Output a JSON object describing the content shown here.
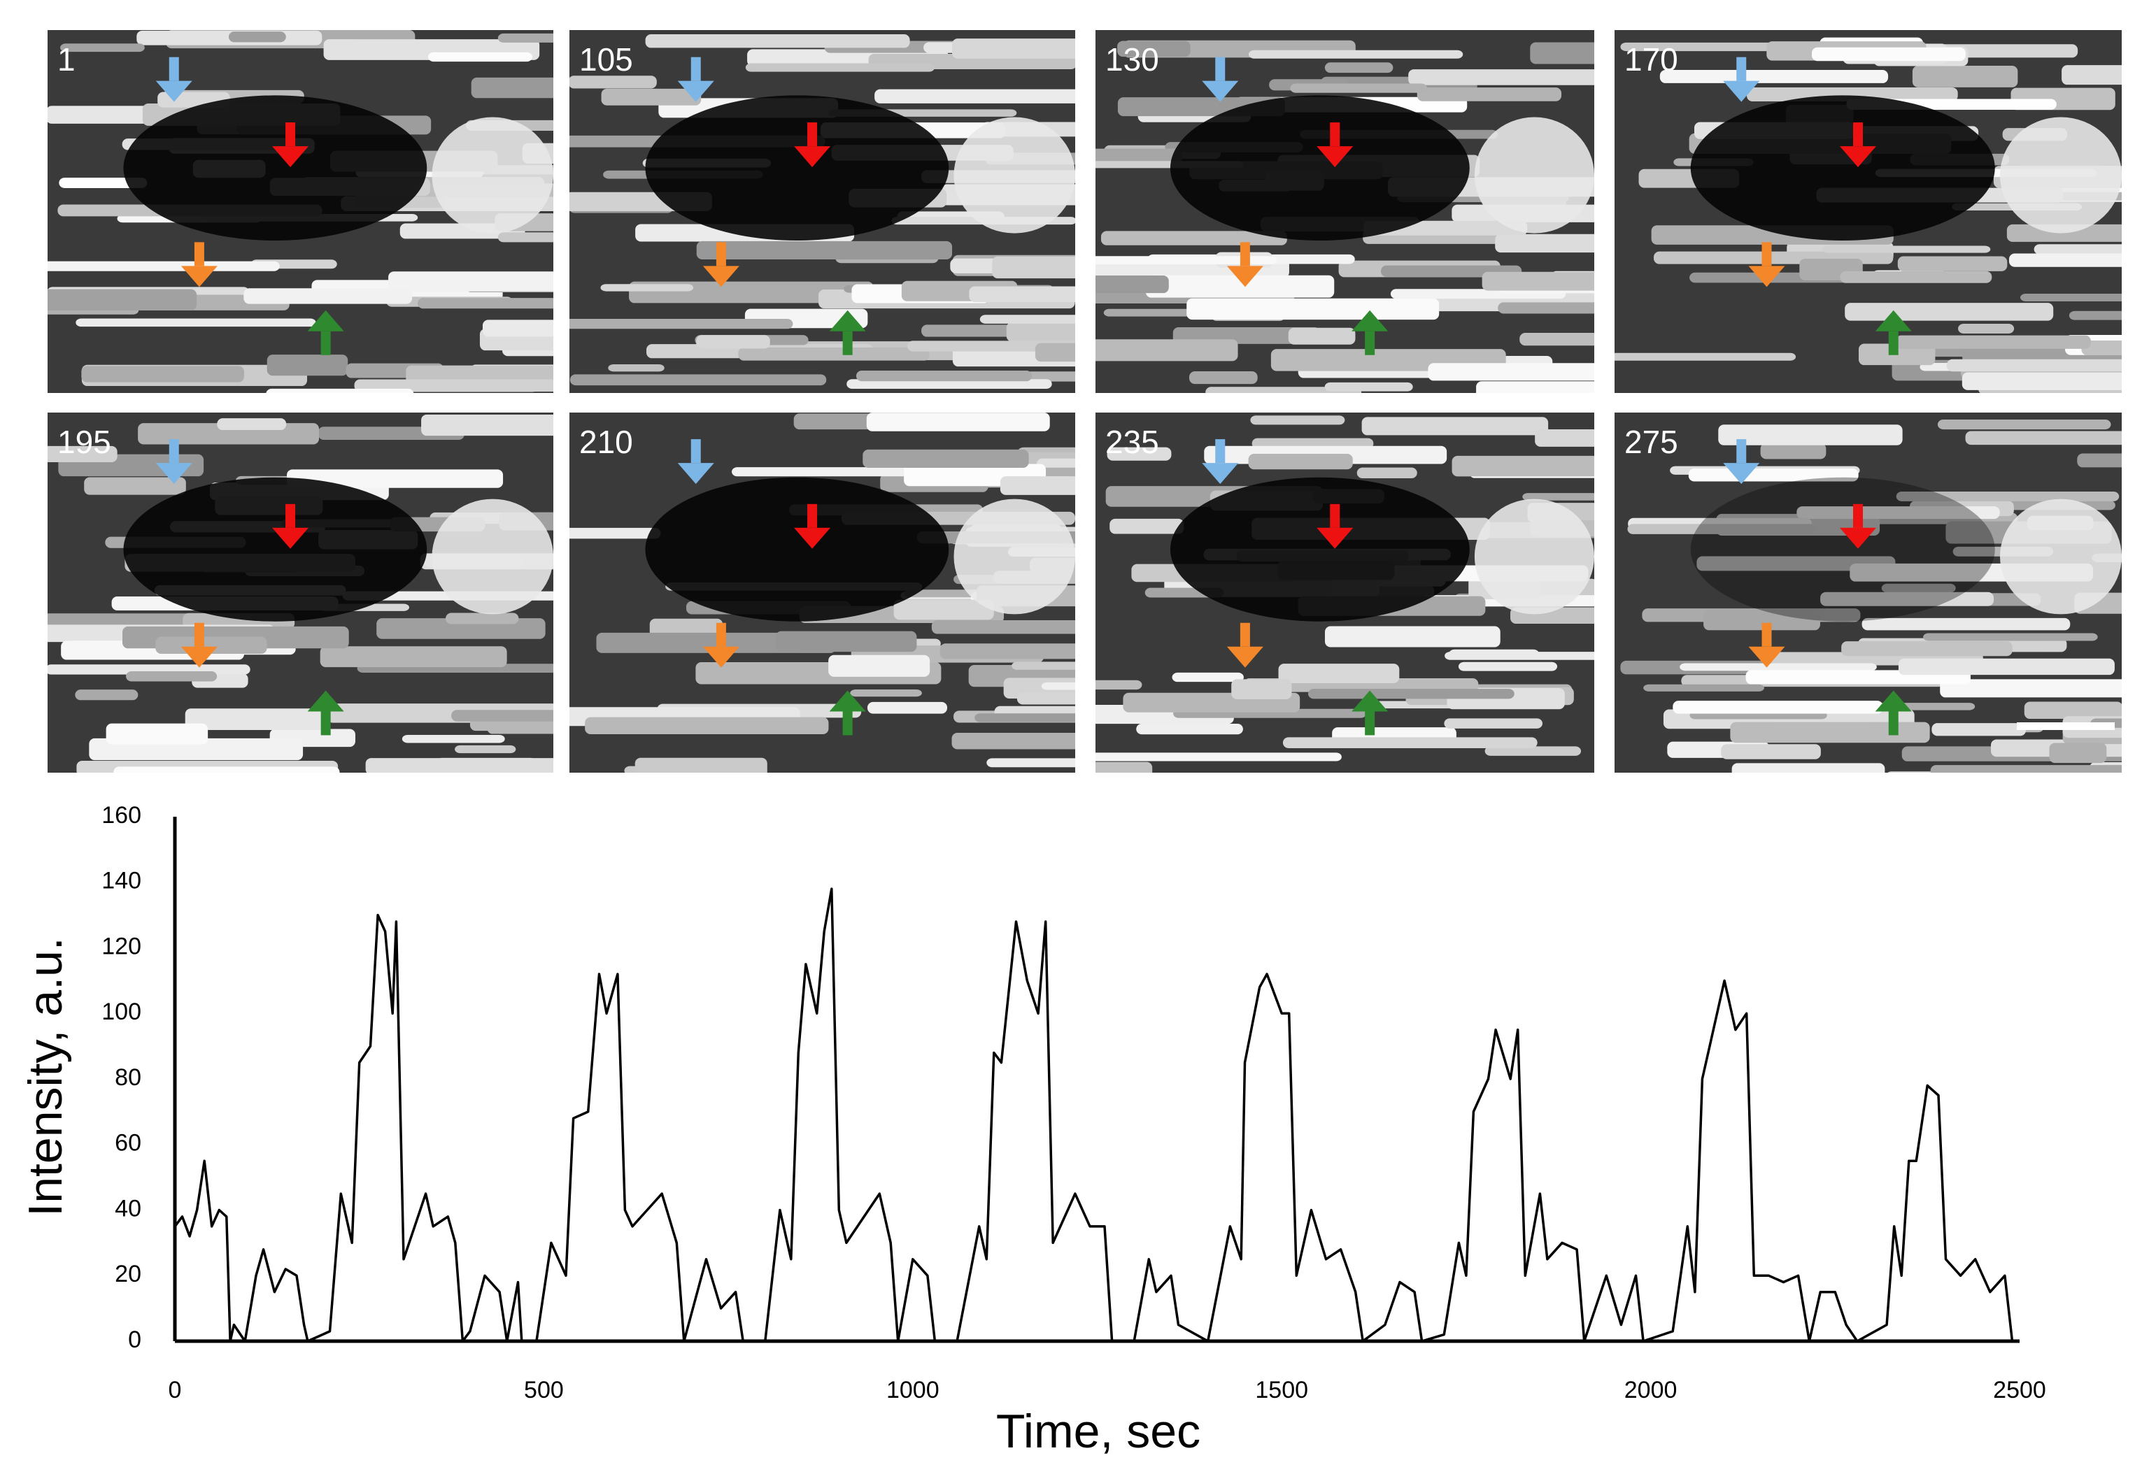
{
  "panels": [
    {
      "label": "1"
    },
    {
      "label": "105"
    },
    {
      "label": "130"
    },
    {
      "label": "170"
    },
    {
      "label": "195"
    },
    {
      "label": "210"
    },
    {
      "label": "235"
    },
    {
      "label": "275"
    }
  ],
  "chart_data": {
    "type": "line",
    "x_label": "Time, sec",
    "y_label": "Intensity, a.u.",
    "color": "#000000",
    "x": [
      0,
      10,
      20,
      30,
      40,
      50,
      60,
      70,
      75,
      80,
      95,
      110,
      120,
      135,
      150,
      165,
      175,
      180,
      200,
      210,
      225,
      240,
      250,
      265,
      275,
      285,
      295,
      300,
      310,
      325,
      340,
      350,
      370,
      380,
      390,
      400,
      420,
      440,
      450,
      465,
      470,
      490,
      510,
      530,
      540,
      560,
      575,
      585,
      600,
      610,
      620,
      640,
      660,
      680,
      690,
      720,
      740,
      760,
      770,
      800,
      820,
      835,
      845,
      855,
      870,
      880,
      890,
      900,
      910,
      940,
      955,
      970,
      980,
      1000,
      1020,
      1030,
      1060,
      1090,
      1100,
      1110,
      1120,
      1140,
      1155,
      1170,
      1180,
      1190,
      1200,
      1220,
      1240,
      1260,
      1270,
      1300,
      1320,
      1330,
      1350,
      1360,
      1400,
      1430,
      1445,
      1450,
      1470,
      1480,
      1500,
      1510,
      1520,
      1540,
      1560,
      1580,
      1600,
      1610,
      1640,
      1660,
      1680,
      1690,
      1720,
      1740,
      1750,
      1760,
      1780,
      1790,
      1810,
      1820,
      1830,
      1850,
      1860,
      1880,
      1900,
      1910,
      1940,
      1960,
      1980,
      1990,
      2030,
      2050,
      2060,
      2070,
      2080,
      2100,
      2115,
      2130,
      2140,
      2160,
      2180,
      2200,
      2215,
      2230,
      2250,
      2265,
      2280,
      2320,
      2330,
      2340,
      2350,
      2360,
      2375,
      2390,
      2400,
      2420,
      2440,
      2460,
      2480,
      2490
    ],
    "values": [
      35,
      38,
      32,
      40,
      55,
      35,
      40,
      38,
      0,
      5,
      0,
      20,
      28,
      15,
      22,
      20,
      5,
      0,
      2,
      3,
      45,
      30,
      85,
      90,
      130,
      125,
      100,
      128,
      25,
      35,
      45,
      35,
      38,
      30,
      0,
      3,
      20,
      15,
      0,
      18,
      0,
      0,
      30,
      20,
      68,
      70,
      112,
      100,
      112,
      40,
      35,
      40,
      45,
      30,
      0,
      25,
      10,
      15,
      0,
      0,
      40,
      25,
      88,
      115,
      100,
      125,
      138,
      40,
      30,
      40,
      45,
      30,
      0,
      25,
      20,
      0,
      0,
      35,
      25,
      88,
      85,
      128,
      110,
      100,
      128,
      30,
      35,
      45,
      35,
      35,
      0,
      0,
      25,
      15,
      20,
      5,
      0,
      35,
      25,
      85,
      108,
      112,
      100,
      100,
      20,
      40,
      25,
      28,
      15,
      0,
      5,
      18,
      15,
      0,
      2,
      30,
      20,
      70,
      80,
      95,
      80,
      95,
      20,
      45,
      25,
      30,
      28,
      0,
      20,
      5,
      20,
      0,
      3,
      35,
      15,
      80,
      90,
      110,
      95,
      100,
      20,
      20,
      18,
      20,
      0,
      15,
      15,
      5,
      0,
      5,
      35,
      20,
      55,
      55,
      78,
      75,
      25,
      20,
      25,
      15,
      20,
      0
    ],
    "xlim": [
      0,
      2500
    ],
    "ylim": [
      0,
      160
    ],
    "xticks": [
      0,
      500,
      1000,
      1500,
      2000,
      2500
    ],
    "yticks": [
      0,
      20,
      40,
      60,
      80,
      100,
      120,
      140,
      160
    ]
  }
}
